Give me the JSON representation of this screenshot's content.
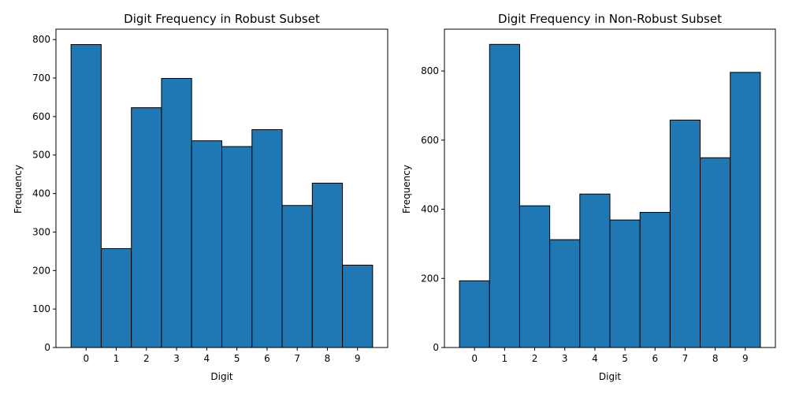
{
  "chart_data": [
    {
      "type": "bar",
      "title": "Digit Frequency in Robust Subset",
      "xlabel": "Digit",
      "ylabel": "Frequency",
      "categories": [
        "0",
        "1",
        "2",
        "3",
        "4",
        "5",
        "6",
        "7",
        "8",
        "9"
      ],
      "values": [
        787,
        257,
        623,
        699,
        537,
        522,
        566,
        369,
        427,
        214
      ],
      "ylim": [
        0,
        827
      ],
      "yticks": [
        0,
        100,
        200,
        300,
        400,
        500,
        600,
        700,
        800
      ],
      "bar_color": "#1f77b4",
      "edge_color": "#000000",
      "grid": false
    },
    {
      "type": "bar",
      "title": "Digit Frequency in Non-Robust Subset",
      "xlabel": "Digit",
      "ylabel": "Frequency",
      "categories": [
        "0",
        "1",
        "2",
        "3",
        "4",
        "5",
        "6",
        "7",
        "8",
        "9"
      ],
      "values": [
        193,
        877,
        410,
        312,
        444,
        369,
        391,
        658,
        549,
        796
      ],
      "ylim": [
        0,
        921
      ],
      "yticks": [
        0,
        200,
        400,
        600,
        800
      ],
      "bar_color": "#1f77b4",
      "edge_color": "#000000",
      "grid": false
    }
  ]
}
